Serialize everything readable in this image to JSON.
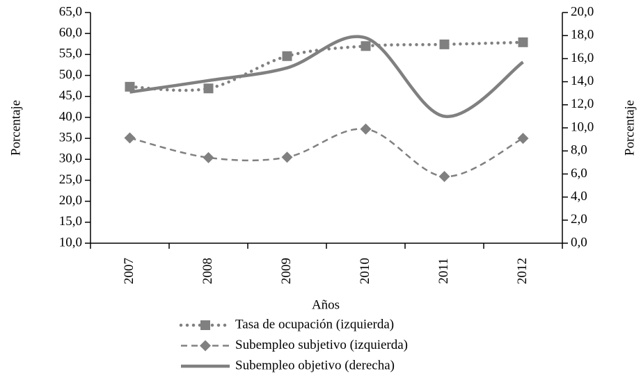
{
  "chart_data": {
    "type": "line",
    "categories": [
      "2007",
      "2008",
      "2009",
      "2010",
      "2011",
      "2012"
    ],
    "x_label": "Años",
    "y_label": "Porcentaje",
    "y2_label": "Porcentaje",
    "ylim": [
      10,
      65
    ],
    "yticks": [
      {
        "value": 10,
        "label": "10,0"
      },
      {
        "value": 15,
        "label": "15,0"
      },
      {
        "value": 20,
        "label": "20,0"
      },
      {
        "value": 25,
        "label": "25,0"
      },
      {
        "value": 30,
        "label": "30,0"
      },
      {
        "value": 35,
        "label": "35,0"
      },
      {
        "value": 40,
        "label": "40,0"
      },
      {
        "value": 45,
        "label": "45,0"
      },
      {
        "value": 50,
        "label": "50,0"
      },
      {
        "value": 55,
        "label": "55,0"
      },
      {
        "value": 60,
        "label": "60,0"
      },
      {
        "value": 65,
        "label": "65,0"
      }
    ],
    "y2lim": [
      0,
      20
    ],
    "y2ticks": [
      {
        "value": 0,
        "label": "0,0"
      },
      {
        "value": 2,
        "label": "2,0"
      },
      {
        "value": 4,
        "label": "4,0"
      },
      {
        "value": 6,
        "label": "6,0"
      },
      {
        "value": 8,
        "label": "8,0"
      },
      {
        "value": 10,
        "label": "10,0"
      },
      {
        "value": 12,
        "label": "12,0"
      },
      {
        "value": 14,
        "label": "14,0"
      },
      {
        "value": 16,
        "label": "16,0"
      },
      {
        "value": 18,
        "label": "18,0"
      },
      {
        "value": 20,
        "label": "20,0"
      }
    ],
    "smooth": true,
    "series": [
      {
        "name": "Tasa de ocupación (izquierda)",
        "color": "#808080",
        "line_style": "dotted",
        "marker": "square",
        "values": [
          47.3,
          46.9,
          54.6,
          57.0,
          57.4,
          57.9
        ]
      },
      {
        "name": "Subempleo subjetivo (izquierda)",
        "color": "#808080",
        "line_style": "dashed",
        "marker": "diamond",
        "values": [
          35.1,
          30.4,
          30.5,
          37.2,
          25.9,
          35.0
        ]
      },
      {
        "name": "Subempleo objetivo (derecha)",
        "color": "#808080",
        "line_style": "solid",
        "marker": "none",
        "axis": "y2",
        "values": [
          13.1,
          14.1,
          15.2,
          17.8,
          11.0,
          15.7
        ]
      }
    ]
  }
}
